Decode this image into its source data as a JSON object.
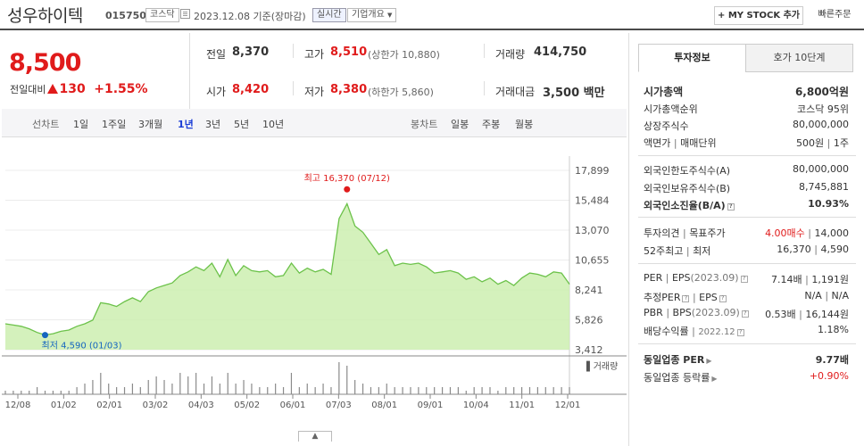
{
  "header": {
    "company_name": "성우하이텍",
    "code": "015750",
    "market": "코스닥",
    "date_text": "2023.12.08 기준(장마감)",
    "realtime_label": "실시간",
    "overview_label": "기업개요",
    "mystock_label": "MY STOCK 추가",
    "quick_order_label": "빠른주문"
  },
  "quote": {
    "price": "8,500",
    "prev_label": "전일대비",
    "change": "130",
    "change_pct": "+1.55%",
    "prev_close_label": "전일",
    "prev_close": "8,370",
    "open_label": "시가",
    "open": "8,420",
    "high_label": "고가",
    "high": "8,510",
    "upper_limit": "(상한가 10,880)",
    "low_label": "저가",
    "low": "8,380",
    "lower_limit": "(하한가 5,860)",
    "volume_label": "거래량",
    "volume": "414,750",
    "amount_label": "거래대금",
    "amount": "3,500 백만"
  },
  "tabs": {
    "line_label": "선차트",
    "line_periods": [
      "1일",
      "1주일",
      "3개월",
      "1년",
      "3년",
      "5년",
      "10년"
    ],
    "active_period": "1년",
    "candle_label": "봉차트",
    "candle_periods": [
      "일봉",
      "주봉",
      "월봉"
    ]
  },
  "right_panel": {
    "tab_invest": "투자정보",
    "tab_orderbook": "호가 10단계",
    "market_cap_label": "시가총액",
    "market_cap": "6,800억원",
    "market_cap_rank_label": "시가총액순위",
    "market_cap_rank": "코스닥 95위",
    "shares_label": "상장주식수",
    "shares": "80,000,000",
    "par_label": "액면가",
    "trade_unit_label": "매매단위",
    "par_value": "500원",
    "trade_unit": "1주",
    "foreign_limit_label": "외국인한도주식수(A)",
    "foreign_limit": "80,000,000",
    "foreign_hold_label": "외국인보유주식수(B)",
    "foreign_hold": "8,745,881",
    "foreign_ratio_label": "외국인소진율(B/A)",
    "foreign_ratio": "10.93%",
    "opinion_label": "투자의견",
    "target_label": "목표주가",
    "opinion": "4.00매수",
    "target": "14,000",
    "high52_label": "52주최고",
    "low52_label": "최저",
    "high52": "16,370",
    "low52": "4,590",
    "per_label": "PER",
    "eps_label": "EPS",
    "eps_period": "(2023.09)",
    "per": "7.14배",
    "eps": "1,191원",
    "est_per_label": "추정PER",
    "est_eps_label": "EPS",
    "est_per": "N/A",
    "est_eps": "N/A",
    "pbr_label": "PBR",
    "bps_label": "BPS",
    "bps_period": "(2023.09)",
    "pbr": "0.53배",
    "bps": "16,144원",
    "div_label": "배당수익률",
    "div_date": "2022.12",
    "div_yield": "1.18%",
    "sector_per_label": "동일업종 PER",
    "sector_per": "9.77배",
    "sector_chg_label": "동일업종 등락률",
    "sector_chg": "+0.90%"
  },
  "chart_data": {
    "type": "area",
    "title": "",
    "y_ticks": [
      "17,899",
      "15,484",
      "13,070",
      "10,655",
      "8,241",
      "5,826",
      "3,412"
    ],
    "ylim": [
      3412,
      17899
    ],
    "x_ticks": [
      "12/08",
      "01/02",
      "02/01",
      "03/02",
      "04/03",
      "05/02",
      "06/01",
      "07/03",
      "08/01",
      "09/01",
      "10/04",
      "11/01",
      "12/01"
    ],
    "series": [
      {
        "values": [
          5500,
          5400,
          5300,
          5100,
          4800,
          4600,
          4700,
          4900,
          5000,
          5300,
          5500,
          5800,
          7200,
          7100,
          6900,
          7300,
          7600,
          7300,
          8100,
          8400,
          8600,
          8800,
          9400,
          9700,
          10100,
          9800,
          10400,
          9300,
          10700,
          9400,
          10200,
          9800,
          9700,
          9800,
          9300,
          9400,
          10400,
          9600,
          10000,
          9700,
          9900,
          9500,
          14000,
          15200,
          13400,
          12900,
          12000,
          11100,
          11500,
          10200,
          10400,
          10300,
          10400,
          10100,
          9600,
          9700,
          9800,
          9600,
          9100,
          9300,
          8900,
          9200,
          8700,
          9000,
          8600,
          9200,
          9600,
          9500,
          9300,
          9700,
          9600,
          8700
        ]
      }
    ],
    "volume_label": "거래량",
    "volume": [
      1,
      1,
      1,
      1,
      2,
      1,
      1,
      1,
      1,
      2,
      3,
      4,
      6,
      3,
      2,
      2,
      3,
      2,
      4,
      5,
      4,
      3,
      6,
      5,
      6,
      3,
      5,
      3,
      6,
      3,
      4,
      3,
      2,
      2,
      3,
      2,
      6,
      2,
      3,
      2,
      3,
      2,
      9,
      8,
      4,
      3,
      2,
      2,
      3,
      2,
      2,
      2,
      2,
      2,
      2,
      2,
      2,
      2,
      1,
      2,
      2,
      2,
      1,
      2,
      2,
      2,
      2,
      2,
      2,
      2,
      2,
      2
    ],
    "high_annotation": "최고 16,370 (07/12)",
    "high_value": 16370,
    "low_annotation": "최저 4,590 (01/03)",
    "low_value": 4590,
    "colors": {
      "line": "#6cc24a",
      "fill": "#cdeeb0",
      "high": "#e01b1b",
      "low": "#1565c0"
    }
  }
}
